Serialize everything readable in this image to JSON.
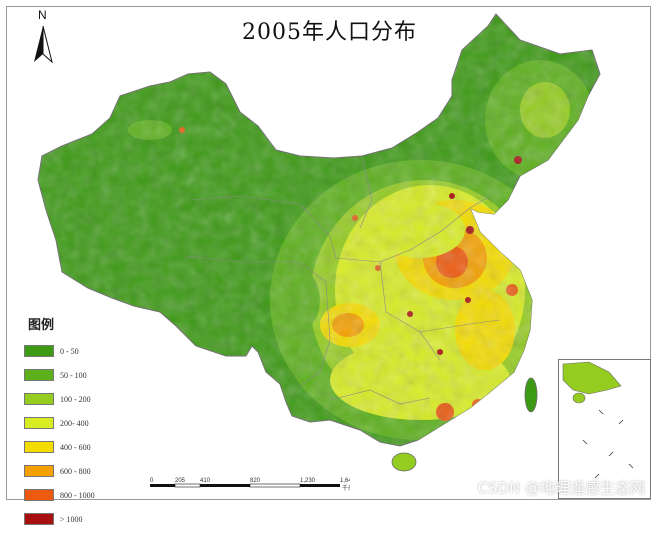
{
  "title": "2005年人口分布",
  "north_arrow": {
    "label": "N"
  },
  "legend": {
    "title": "图例",
    "items": [
      {
        "label": "0 - 50",
        "color": "#3c9a14"
      },
      {
        "label": "50 - 100",
        "color": "#5cb01c"
      },
      {
        "label": "100 - 200",
        "color": "#94cc20"
      },
      {
        "label": "200- 400",
        "color": "#d8ec24"
      },
      {
        "label": "400 - 600",
        "color": "#f4dc00"
      },
      {
        "label": "600 - 800",
        "color": "#f4a000"
      },
      {
        "label": "800 - 1000",
        "color": "#ec5a10"
      },
      {
        "label": "> 1000",
        "color": "#a81010"
      }
    ]
  },
  "scale_bar": {
    "ticks": [
      "0",
      "205",
      "410",
      "820",
      "1,230",
      "1,640"
    ],
    "unit": "千米"
  },
  "watermark": "CSDN @地理遥感生态网",
  "colors": {
    "land_base": "#3c9a14",
    "boundary": "#8a8a8a",
    "sea": "#ffffff"
  }
}
